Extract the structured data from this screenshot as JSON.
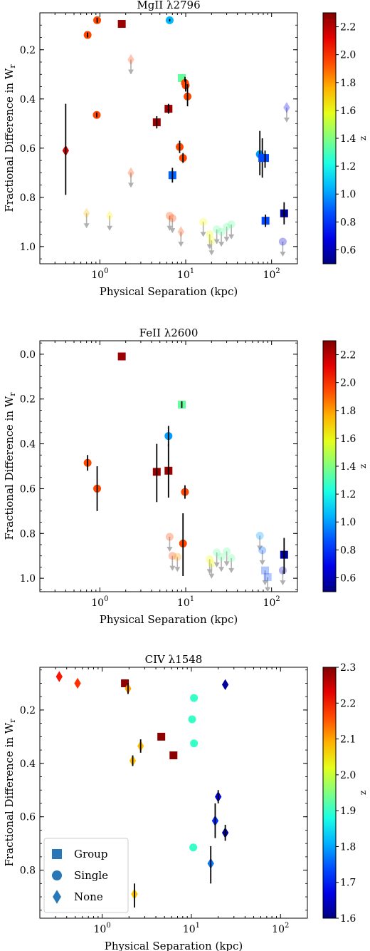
{
  "chart_data": [
    {
      "type": "scatter",
      "title": "MgII λ2796",
      "xlabel": "Physical Separation (kpc)",
      "ylabel": "Fractional Difference in W_r",
      "x_scale": "log",
      "xlim": [
        0.2,
        200
      ],
      "ylim": [
        1.07,
        0.05
      ],
      "y_inverted": true,
      "x_tick_labels": [
        "10^0",
        "10^1",
        "10^2"
      ],
      "y_tick_labels": [
        "0.2",
        "0.4",
        "0.6",
        "0.8",
        "1.0"
      ],
      "y_ticks": [
        0.2,
        0.4,
        0.6,
        0.8,
        1.0
      ],
      "colorbar": {
        "label": "z",
        "min": 0.5,
        "max": 2.3,
        "ticks": [
          0.6,
          0.8,
          1.0,
          1.2,
          1.4,
          1.6,
          1.8,
          2.0,
          2.2
        ]
      },
      "points": [
        {
          "x": 0.4,
          "y": 0.61,
          "z": 2.15,
          "marker": "diamond",
          "err": [
            0.42,
            0.79
          ]
        },
        {
          "x": 0.72,
          "y": 0.14,
          "z": 1.95,
          "marker": "circle",
          "err": [
            0.13,
            0.15
          ]
        },
        {
          "x": 0.93,
          "y": 0.08,
          "z": 1.95,
          "marker": "circle",
          "err": [
            0.07,
            0.09
          ]
        },
        {
          "x": 0.92,
          "y": 0.465,
          "z": 1.95,
          "marker": "circle",
          "err": [
            0.455,
            0.475
          ]
        },
        {
          "x": 1.8,
          "y": 0.095,
          "z": 2.25,
          "marker": "square"
        },
        {
          "x": 6.5,
          "y": 0.08,
          "z": 1.05,
          "marker": "circle",
          "err": [
            0.075,
            0.085
          ]
        },
        {
          "x": 4.6,
          "y": 0.495,
          "z": 2.25,
          "marker": "square",
          "err": [
            0.47,
            0.52
          ]
        },
        {
          "x": 6.3,
          "y": 0.44,
          "z": 2.25,
          "marker": "square",
          "err": [
            0.42,
            0.46
          ]
        },
        {
          "x": 9.0,
          "y": 0.315,
          "z": 1.35,
          "marker": "square"
        },
        {
          "x": 9.8,
          "y": 0.335,
          "z": 1.95,
          "marker": "circle",
          "err": [
            0.31,
            0.36
          ]
        },
        {
          "x": 10.0,
          "y": 0.345,
          "z": 1.95,
          "marker": "circle",
          "err": [
            0.32,
            0.37
          ]
        },
        {
          "x": 10.5,
          "y": 0.39,
          "z": 1.95,
          "marker": "circle",
          "err": [
            0.34,
            0.43
          ]
        },
        {
          "x": 8.5,
          "y": 0.595,
          "z": 1.95,
          "marker": "circle",
          "err": [
            0.57,
            0.62
          ]
        },
        {
          "x": 9.3,
          "y": 0.64,
          "z": 1.95,
          "marker": "circle",
          "err": [
            0.62,
            0.66
          ]
        },
        {
          "x": 7.0,
          "y": 0.71,
          "z": 0.9,
          "marker": "square",
          "err": [
            0.68,
            0.74
          ]
        },
        {
          "x": 73,
          "y": 0.625,
          "z": 1.0,
          "marker": "circle",
          "err": [
            0.53,
            0.71
          ]
        },
        {
          "x": 78,
          "y": 0.64,
          "z": 0.85,
          "marker": "square",
          "err": [
            0.56,
            0.72
          ]
        },
        {
          "x": 84,
          "y": 0.64,
          "z": 0.85,
          "marker": "square",
          "err": [
            0.61,
            0.68
          ]
        },
        {
          "x": 85,
          "y": 0.895,
          "z": 0.85,
          "marker": "square",
          "err": [
            0.87,
            0.92
          ]
        },
        {
          "x": 140,
          "y": 0.865,
          "z": 0.55,
          "marker": "square",
          "err": [
            0.82,
            0.91
          ]
        }
      ],
      "upper_limits": [
        {
          "x": 2.3,
          "y": 0.24,
          "z": 1.95,
          "marker": "diamond"
        },
        {
          "x": 2.3,
          "y": 0.7,
          "z": 1.95,
          "marker": "diamond"
        },
        {
          "x": 0.7,
          "y": 0.865,
          "z": 1.75,
          "marker": "diamond"
        },
        {
          "x": 1.3,
          "y": 0.875,
          "z": 1.65,
          "marker": "diamond"
        },
        {
          "x": 6.5,
          "y": 0.875,
          "z": 1.95,
          "marker": "circle"
        },
        {
          "x": 7.0,
          "y": 0.885,
          "z": 1.95,
          "marker": "circle"
        },
        {
          "x": 8.8,
          "y": 0.94,
          "z": 1.95,
          "marker": "diamond"
        },
        {
          "x": 16,
          "y": 0.9,
          "z": 1.6,
          "marker": "circle"
        },
        {
          "x": 19,
          "y": 0.95,
          "z": 1.6,
          "marker": "circle"
        },
        {
          "x": 20,
          "y": 0.975,
          "z": 1.6,
          "marker": "circle"
        },
        {
          "x": 23,
          "y": 0.93,
          "z": 1.35,
          "marker": "circle"
        },
        {
          "x": 26,
          "y": 0.94,
          "z": 1.35,
          "marker": "circle"
        },
        {
          "x": 30,
          "y": 0.92,
          "z": 1.35,
          "marker": "circle"
        },
        {
          "x": 34,
          "y": 0.91,
          "z": 1.35,
          "marker": "circle"
        },
        {
          "x": 135,
          "y": 0.98,
          "z": 0.65,
          "marker": "circle"
        },
        {
          "x": 150,
          "y": 0.435,
          "z": 0.7,
          "marker": "diamond"
        }
      ]
    },
    {
      "type": "scatter",
      "title": "FeII λ2600",
      "xlabel": "Physical Separation (kpc)",
      "ylabel": "Fractional Difference in W_r",
      "x_scale": "log",
      "xlim": [
        0.2,
        200
      ],
      "ylim": [
        1.06,
        -0.06
      ],
      "y_inverted": true,
      "x_tick_labels": [
        "10^0",
        "10^1",
        "10^2"
      ],
      "y_tick_labels": [
        "0.0",
        "0.2",
        "0.4",
        "0.6",
        "0.8",
        "1.0"
      ],
      "y_ticks": [
        0.0,
        0.2,
        0.4,
        0.6,
        0.8,
        1.0
      ],
      "colorbar": {
        "label": "z",
        "min": 0.5,
        "max": 2.3,
        "ticks": [
          0.6,
          0.8,
          1.0,
          1.2,
          1.4,
          1.6,
          1.8,
          2.0,
          2.2
        ]
      },
      "points": [
        {
          "x": 1.8,
          "y": 0.01,
          "z": 2.25,
          "marker": "square"
        },
        {
          "x": 9.0,
          "y": 0.225,
          "z": 1.35,
          "marker": "square",
          "err": [
            0.21,
            0.24
          ]
        },
        {
          "x": 6.3,
          "y": 0.365,
          "z": 1.0,
          "marker": "circle",
          "err": [
            0.32,
            0.41
          ]
        },
        {
          "x": 0.72,
          "y": 0.485,
          "z": 1.95,
          "marker": "circle",
          "err": [
            0.45,
            0.52
          ]
        },
        {
          "x": 0.93,
          "y": 0.6,
          "z": 1.95,
          "marker": "circle",
          "err": [
            0.5,
            0.7
          ]
        },
        {
          "x": 4.6,
          "y": 0.525,
          "z": 2.25,
          "marker": "square",
          "err": [
            0.4,
            0.66
          ]
        },
        {
          "x": 6.3,
          "y": 0.52,
          "z": 2.25,
          "marker": "square",
          "err": [
            0.4,
            0.64
          ]
        },
        {
          "x": 9.8,
          "y": 0.615,
          "z": 1.95,
          "marker": "circle",
          "err": [
            0.585,
            0.645
          ]
        },
        {
          "x": 9.3,
          "y": 0.845,
          "z": 1.95,
          "marker": "circle",
          "err": [
            0.71,
            0.99
          ]
        },
        {
          "x": 140,
          "y": 0.895,
          "z": 0.55,
          "marker": "square",
          "err": [
            0.82,
            0.98
          ]
        }
      ],
      "upper_limits": [
        {
          "x": 6.5,
          "y": 0.815,
          "z": 1.95,
          "marker": "circle"
        },
        {
          "x": 7.0,
          "y": 0.9,
          "z": 1.95,
          "marker": "circle"
        },
        {
          "x": 8.0,
          "y": 0.905,
          "z": 1.8,
          "marker": "circle"
        },
        {
          "x": 19,
          "y": 0.915,
          "z": 1.6,
          "marker": "circle"
        },
        {
          "x": 20,
          "y": 0.935,
          "z": 1.6,
          "marker": "circle"
        },
        {
          "x": 23,
          "y": 0.885,
          "z": 1.35,
          "marker": "circle"
        },
        {
          "x": 26,
          "y": 0.905,
          "z": 1.35,
          "marker": "circle"
        },
        {
          "x": 30,
          "y": 0.88,
          "z": 1.35,
          "marker": "circle"
        },
        {
          "x": 34,
          "y": 0.91,
          "z": 1.35,
          "marker": "circle"
        },
        {
          "x": 73,
          "y": 0.81,
          "z": 1.0,
          "marker": "circle"
        },
        {
          "x": 78,
          "y": 0.875,
          "z": 0.9,
          "marker": "circle"
        },
        {
          "x": 84,
          "y": 0.965,
          "z": 0.85,
          "marker": "square"
        },
        {
          "x": 90,
          "y": 0.995,
          "z": 0.85,
          "marker": "square"
        },
        {
          "x": 135,
          "y": 0.965,
          "z": 0.65,
          "marker": "circle"
        }
      ]
    },
    {
      "type": "scatter",
      "title": "CIV λ1548",
      "xlabel": "Physical Separation (kpc)",
      "ylabel": "Fractional Difference in W_r",
      "x_scale": "log",
      "xlim": [
        0.2,
        200
      ],
      "ylim": [
        0.98,
        0.04
      ],
      "y_inverted": true,
      "x_tick_labels": [
        "10^0",
        "10^1",
        "10^2"
      ],
      "y_tick_labels": [
        "0.2",
        "0.4",
        "0.6",
        "0.8"
      ],
      "y_ticks": [
        0.2,
        0.4,
        0.6,
        0.8
      ],
      "colorbar": {
        "label": "z",
        "min": 1.6,
        "max": 2.3,
        "ticks": [
          1.6,
          1.7,
          1.8,
          1.9,
          2.0,
          2.1,
          2.2,
          2.3
        ]
      },
      "legend": {
        "position": "lower-left",
        "entries": [
          "Group",
          "Single",
          "None"
        ]
      },
      "points": [
        {
          "x": 0.33,
          "y": 0.075,
          "z": 2.2,
          "marker": "diamond"
        },
        {
          "x": 0.53,
          "y": 0.1,
          "z": 2.18,
          "marker": "diamond"
        },
        {
          "x": 1.8,
          "y": 0.1,
          "z": 2.29,
          "marker": "square"
        },
        {
          "x": 1.95,
          "y": 0.12,
          "z": 2.1,
          "marker": "diamond",
          "err": [
            0.1,
            0.14
          ]
        },
        {
          "x": 24,
          "y": 0.105,
          "z": 1.62,
          "marker": "diamond"
        },
        {
          "x": 10.7,
          "y": 0.155,
          "z": 1.9,
          "marker": "circle"
        },
        {
          "x": 10.2,
          "y": 0.235,
          "z": 1.9,
          "marker": "circle"
        },
        {
          "x": 10.7,
          "y": 0.325,
          "z": 1.9,
          "marker": "circle"
        },
        {
          "x": 4.6,
          "y": 0.3,
          "z": 2.29,
          "marker": "square"
        },
        {
          "x": 6.3,
          "y": 0.37,
          "z": 2.29,
          "marker": "square"
        },
        {
          "x": 2.7,
          "y": 0.335,
          "z": 2.08,
          "marker": "diamond",
          "err": [
            0.31,
            0.36
          ]
        },
        {
          "x": 2.2,
          "y": 0.39,
          "z": 2.08,
          "marker": "diamond",
          "err": [
            0.37,
            0.41
          ]
        },
        {
          "x": 20,
          "y": 0.525,
          "z": 1.67,
          "marker": "diamond",
          "err": [
            0.5,
            0.55
          ]
        },
        {
          "x": 18.5,
          "y": 0.615,
          "z": 1.72,
          "marker": "diamond",
          "err": [
            0.55,
            0.68
          ]
        },
        {
          "x": 24,
          "y": 0.66,
          "z": 1.62,
          "marker": "diamond",
          "err": [
            0.63,
            0.69
          ]
        },
        {
          "x": 10.5,
          "y": 0.715,
          "z": 1.9,
          "marker": "circle"
        },
        {
          "x": 16.5,
          "y": 0.775,
          "z": 1.77,
          "marker": "diamond",
          "err": [
            0.71,
            0.85
          ]
        },
        {
          "x": 2.3,
          "y": 0.89,
          "z": 2.08,
          "marker": "diamond",
          "err": [
            0.85,
            0.94
          ]
        }
      ],
      "upper_limits": []
    }
  ]
}
